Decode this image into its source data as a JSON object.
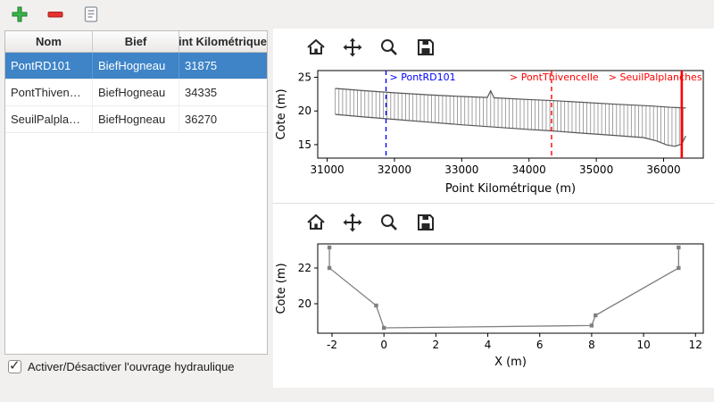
{
  "main_toolbar": {
    "buttons": [
      {
        "name": "add",
        "icon": "plus-icon"
      },
      {
        "name": "remove",
        "icon": "minus-icon"
      },
      {
        "name": "edit",
        "icon": "document-edit-icon"
      }
    ]
  },
  "table": {
    "columns": [
      "Nom",
      "Bief",
      "Point Kilométrique"
    ],
    "rows": [
      {
        "nom": "PontRD101",
        "bief": "BiefHogneau",
        "pk": "31875"
      },
      {
        "nom": "PontThivencelle",
        "bief": "BiefHogneau",
        "pk": "34335"
      },
      {
        "nom": "SeuilPalplanches",
        "bief": "BiefHogneau",
        "pk": "36270"
      }
    ],
    "selected_index": 0,
    "selection_color": "#3e84c7"
  },
  "checkbox": {
    "label": "Activer/Désactiver l'ouvrage hydraulique",
    "checked": true
  },
  "mpl_toolbar": {
    "buttons": [
      "home",
      "pan",
      "zoom",
      "save"
    ]
  },
  "colors": {
    "marker_blue": "#0000ff",
    "marker_red": "#ff0000",
    "profile_gray": "#8a8a8a",
    "section_gray": "#808080"
  },
  "chart_data": [
    {
      "type": "line",
      "name": "profil-longitudinal",
      "xlabel": "Point Kilométrique (m)",
      "ylabel": "Cote (m)",
      "xlim": [
        30860,
        36590
      ],
      "ylim": [
        13.0,
        26.0
      ],
      "xticks": [
        31000,
        32000,
        33000,
        34000,
        35000,
        36000
      ],
      "yticks": [
        15,
        20,
        25
      ],
      "profile": {
        "hatch_step": 55,
        "hatch_color": "#8a8a8a",
        "edge_color": "#555555",
        "top": [
          [
            31120,
            23.35
          ],
          [
            31500,
            23.05
          ],
          [
            32000,
            22.7
          ],
          [
            32500,
            22.4
          ],
          [
            33000,
            22.15
          ],
          [
            33380,
            22.0
          ],
          [
            33430,
            23.0
          ],
          [
            33480,
            21.95
          ],
          [
            34000,
            21.7
          ],
          [
            34335,
            21.55
          ],
          [
            35300,
            21.0
          ],
          [
            35800,
            20.75
          ],
          [
            36100,
            20.55
          ],
          [
            36330,
            20.45
          ]
        ],
        "bottom": [
          [
            31120,
            19.5
          ],
          [
            31500,
            19.15
          ],
          [
            32000,
            18.75
          ],
          [
            32500,
            18.35
          ],
          [
            33000,
            17.95
          ],
          [
            33500,
            17.6
          ],
          [
            34000,
            17.25
          ],
          [
            34335,
            17.05
          ],
          [
            34800,
            16.7
          ],
          [
            35300,
            16.35
          ],
          [
            35700,
            16.05
          ],
          [
            35900,
            15.55
          ],
          [
            36050,
            14.95
          ],
          [
            36170,
            14.75
          ],
          [
            36270,
            15.1
          ],
          [
            36330,
            16.3
          ]
        ]
      },
      "vlines": [
        {
          "x": 31875,
          "label": "> PontRD101",
          "color": "#0000ff",
          "dash": true,
          "width": 1.4
        },
        {
          "x": 34335,
          "label": "> PontThivencelle",
          "color": "#ff0000",
          "dash": true,
          "width": 1.4
        },
        {
          "x": 36270,
          "label": "> SeuilPalplanches",
          "color": "#ff0000",
          "dash": false,
          "width": 2.6
        }
      ]
    },
    {
      "type": "line",
      "name": "section-transversale",
      "xlabel": "X (m)",
      "ylabel": "Cote (m)",
      "xlim": [
        -2.55,
        12.3
      ],
      "ylim": [
        18.35,
        23.35
      ],
      "xticks": [
        -2,
        0,
        2,
        4,
        6,
        8,
        10,
        12
      ],
      "yticks": [
        20,
        22
      ],
      "series": [
        {
          "name": "section",
          "color": "#808080",
          "marker": "square",
          "points": [
            [
              -2.1,
              23.15
            ],
            [
              -2.1,
              22.0
            ],
            [
              -0.3,
              19.9
            ],
            [
              0.0,
              18.65
            ],
            [
              8.0,
              18.78
            ],
            [
              8.15,
              19.35
            ],
            [
              11.35,
              22.0
            ],
            [
              11.35,
              23.15
            ]
          ]
        }
      ]
    }
  ]
}
